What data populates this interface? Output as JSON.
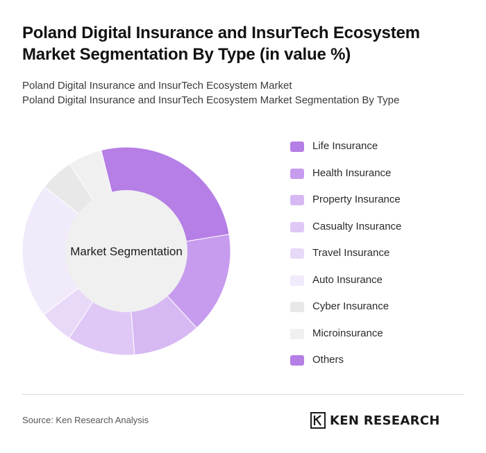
{
  "title": "Poland Digital Insurance and InsurTech Ecosystem Market Segmentation By Type (in value %)",
  "subtitle_line1": "Poland Digital Insurance and InsurTech Ecosystem Market",
  "subtitle_line2": "Poland Digital Insurance and InsurTech Ecosystem Market Segmentation By Type",
  "source": "Source: Ken Research Analysis",
  "brand": {
    "text": "KEN RESEARCH",
    "logo_icon": "ken-research-k-logo"
  },
  "chart_data": {
    "type": "pie",
    "donut": true,
    "center_label": "Market Segmentation",
    "legend_position": "right",
    "categories": [
      "Life Insurance",
      "Health Insurance",
      "Property Insurance",
      "Casualty Insurance",
      "Travel Insurance",
      "Auto Insurance",
      "Cyber Insurance",
      "Microinsurance",
      "Others"
    ],
    "values": [
      25,
      15,
      10,
      10,
      5,
      20,
      5,
      5,
      0
    ],
    "colors": [
      "#b57fe6",
      "#c79cee",
      "#d6b8f3",
      "#dfc8f6",
      "#e8d9f9",
      "#f1eafb",
      "#e8e8e8",
      "#f0f0f0",
      "#b57fe6"
    ],
    "start_angle_deg": -14,
    "center_fill": "#f0f0f0"
  }
}
